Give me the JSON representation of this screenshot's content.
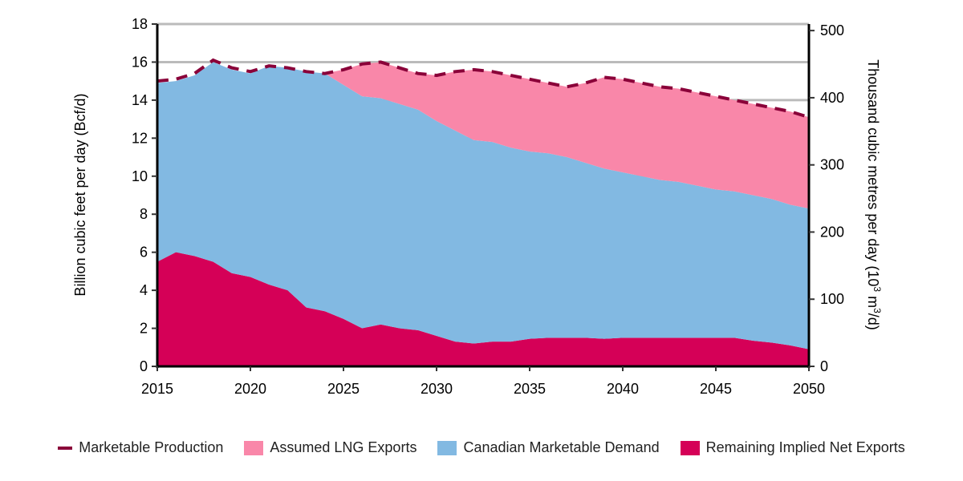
{
  "chart_data": {
    "type": "area",
    "stacked": true,
    "x": [
      2015,
      2016,
      2017,
      2018,
      2019,
      2020,
      2021,
      2022,
      2023,
      2024,
      2025,
      2026,
      2027,
      2028,
      2029,
      2030,
      2031,
      2032,
      2033,
      2034,
      2035,
      2036,
      2037,
      2038,
      2039,
      2040,
      2041,
      2042,
      2043,
      2044,
      2045,
      2046,
      2047,
      2048,
      2049,
      2050
    ],
    "xlim": [
      2015,
      2050
    ],
    "xticks": [
      2015,
      2020,
      2025,
      2030,
      2035,
      2040,
      2045,
      2050
    ],
    "ylabel": "Billion cubic feet per day (Bcf/d)",
    "ylim": [
      0,
      18
    ],
    "yticks": [
      0,
      2,
      4,
      6,
      8,
      10,
      12,
      14,
      16,
      18
    ],
    "y2label": "Thousand cubic metres per day (10³m³/d)",
    "y2label_parts": {
      "main": "Thousand cubic metres per day (10",
      "sup1": "3",
      "mid": " m",
      "sup2": "3",
      "end": "/d)"
    },
    "y2ticks": [
      0,
      100,
      200,
      300,
      400,
      500
    ],
    "y2_per_y": 28.317,
    "grid": "horizontal",
    "legend_position": "bottom",
    "series": [
      {
        "name": "Remaining Implied Net Exports",
        "color": "#d50057",
        "values": [
          5.5,
          6.0,
          5.8,
          5.5,
          4.9,
          4.7,
          4.3,
          4.0,
          3.1,
          2.9,
          2.5,
          2.0,
          2.2,
          2.0,
          1.9,
          1.6,
          1.3,
          1.2,
          1.3,
          1.3,
          1.45,
          1.5,
          1.5,
          1.5,
          1.45,
          1.5,
          1.5,
          1.5,
          1.5,
          1.5,
          1.5,
          1.5,
          1.35,
          1.25,
          1.1,
          0.9
        ]
      },
      {
        "name": "Canadian Marketable Demand",
        "color": "#82b9e2",
        "values": [
          9.4,
          9.0,
          9.5,
          10.5,
          10.7,
          10.7,
          11.5,
          11.7,
          12.4,
          12.5,
          12.3,
          12.2,
          11.9,
          11.8,
          11.6,
          11.3,
          11.1,
          10.7,
          10.5,
          10.2,
          9.85,
          9.7,
          9.5,
          9.2,
          8.95,
          8.7,
          8.5,
          8.3,
          8.2,
          8.0,
          7.8,
          7.7,
          7.65,
          7.55,
          7.4,
          7.4
        ]
      },
      {
        "name": "Assumed LNG Exports",
        "color": "#f987a9",
        "values": [
          0,
          0,
          0,
          0,
          0,
          0,
          0,
          0,
          0,
          0,
          0.8,
          1.7,
          1.9,
          1.9,
          1.9,
          2.4,
          3.1,
          3.7,
          3.7,
          3.8,
          3.8,
          3.7,
          3.7,
          4.2,
          4.8,
          4.9,
          4.9,
          4.9,
          4.9,
          4.9,
          4.9,
          4.8,
          4.8,
          4.8,
          4.9,
          4.8
        ]
      }
    ],
    "line": {
      "name": "Marketable Production",
      "color": "#8a0039",
      "style": "dashed",
      "values": [
        15.0,
        15.1,
        15.4,
        16.1,
        15.7,
        15.5,
        15.8,
        15.7,
        15.5,
        15.4,
        15.6,
        15.9,
        16.0,
        15.7,
        15.4,
        15.3,
        15.5,
        15.6,
        15.5,
        15.3,
        15.1,
        14.9,
        14.7,
        14.9,
        15.2,
        15.1,
        14.9,
        14.7,
        14.6,
        14.4,
        14.2,
        14.0,
        13.8,
        13.6,
        13.4,
        13.1
      ]
    }
  },
  "legend": [
    "Marketable Production",
    "Assumed LNG Exports",
    "Canadian Marketable Demand",
    "Remaining Implied Net Exports"
  ]
}
